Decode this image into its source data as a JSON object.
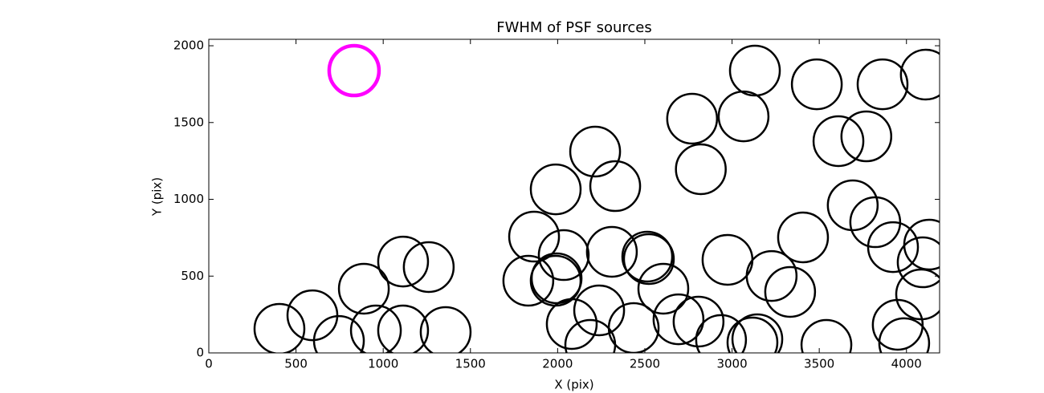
{
  "chart_data": {
    "type": "scatter",
    "title": "FWHM of PSF sources",
    "x_label": "X (pix)",
    "y_label": "Y (pix)",
    "xlim": [
      0,
      4190
    ],
    "ylim": [
      0,
      2042
    ],
    "xticks": [
      0,
      500,
      1000,
      1500,
      2000,
      2500,
      3000,
      3500,
      4000
    ],
    "yticks": [
      0,
      500,
      1000,
      1500,
      2000
    ],
    "grid": false,
    "series": [
      {
        "color": "#000000",
        "x": [
          405,
          594,
          746,
          889,
          958,
          1114,
          1114,
          1261,
          1358,
          1832,
          1865,
          1989,
          1989,
          1994,
          2035,
          2081,
          2187,
          2215,
          2238,
          2330,
          2311,
          2436,
          2514,
          2523,
          2606,
          2693,
          2771,
          2821,
          2808,
          2937,
          2974,
          3066,
          3131,
          3145,
          3117,
          3227,
          3333,
          3407,
          3486,
          3541,
          3610,
          3692,
          3770,
          3821,
          3863,
          3923,
          3950,
          3987,
          4111,
          4130,
          4093,
          4084
        ],
        "values": [
          157,
          245,
          78,
          418,
          146,
          146,
          595,
          559,
          136,
          470,
          757,
          1065,
          470,
          486,
          637,
          188,
          52,
          1311,
          277,
          1086,
          658,
          162,
          627,
          611,
          418,
          219,
          1525,
          1196,
          204,
          84,
          606,
          1540,
          1838,
          89,
          68,
          501,
          397,
          752,
          1749,
          52,
          1379,
          961,
          1410,
          851,
          1749,
          689,
          183,
          63,
          1812,
          705,
          590,
          381
        ]
      },
      {
        "color": "#ff00ff",
        "x": [
          833
        ],
        "values": [
          1838
        ]
      }
    ]
  }
}
